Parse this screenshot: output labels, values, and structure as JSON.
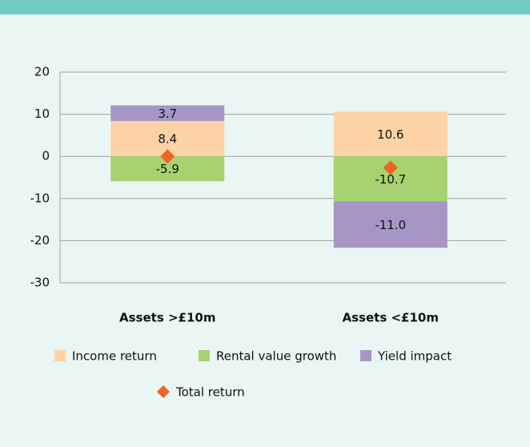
{
  "chart_data": {
    "type": "stacked_bar",
    "categories": [
      "Assets >£10m",
      "Assets <£10m"
    ],
    "series": [
      {
        "name": "Income return",
        "color": "#fdd3a6",
        "values": [
          8.4,
          10.6
        ],
        "value_labels": [
          "8.4",
          "10.6"
        ]
      },
      {
        "name": "Rental value growth",
        "color": "#a7d26f",
        "values": [
          -5.9,
          -10.7
        ],
        "value_labels": [
          "-5.9",
          "-10.7"
        ]
      },
      {
        "name": "Yield impact",
        "color": "#a696c5",
        "values": [
          3.7,
          -11.0
        ],
        "value_labels": [
          "3.7",
          "-11.0"
        ]
      }
    ],
    "overlay": {
      "name": "Total return",
      "color": "#ec6526",
      "type": "scatter",
      "values": [
        0.0,
        -2.7
      ]
    },
    "ylim": [
      -30,
      20
    ],
    "yticks": [
      20,
      10,
      0,
      -10,
      -20,
      -30
    ],
    "grid": true,
    "legend": "bottom"
  }
}
